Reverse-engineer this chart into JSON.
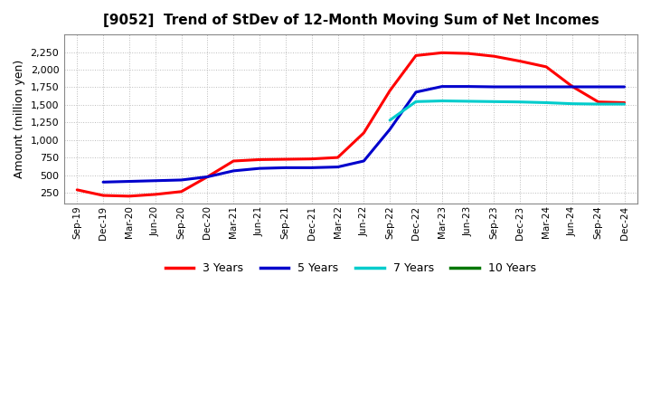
{
  "title": "[9052]  Trend of StDev of 12-Month Moving Sum of Net Incomes",
  "ylabel": "Amount (million yen)",
  "background_color": "#ffffff",
  "plot_bg_color": "#ffffff",
  "grid_color": "#bbbbbb",
  "x_labels": [
    "Sep-19",
    "Dec-19",
    "Mar-20",
    "Jun-20",
    "Sep-20",
    "Dec-20",
    "Mar-21",
    "Jun-21",
    "Sep-21",
    "Dec-21",
    "Mar-22",
    "Jun-22",
    "Sep-22",
    "Dec-22",
    "Mar-23",
    "Jun-23",
    "Sep-23",
    "Dec-23",
    "Mar-24",
    "Jun-24",
    "Sep-24",
    "Dec-24"
  ],
  "ylim": [
    100,
    2500
  ],
  "yticks": [
    250,
    500,
    750,
    1000,
    1250,
    1500,
    1750,
    2000,
    2250
  ],
  "series": [
    {
      "label": "3 Years",
      "color": "#ff0000",
      "values": [
        290,
        210,
        200,
        225,
        265,
        475,
        700,
        720,
        725,
        730,
        750,
        1100,
        1700,
        2200,
        2240,
        2230,
        2190,
        2120,
        2040,
        1760,
        1540,
        1530
      ]
    },
    {
      "label": "5 Years",
      "color": "#0000cc",
      "values": [
        null,
        400,
        410,
        420,
        430,
        475,
        560,
        595,
        605,
        605,
        615,
        700,
        1150,
        1680,
        1760,
        1760,
        1755,
        1755,
        1755,
        1755,
        1755,
        1755
      ]
    },
    {
      "label": "7 Years",
      "color": "#00cccc",
      "values": [
        null,
        null,
        null,
        null,
        null,
        null,
        null,
        null,
        null,
        null,
        null,
        null,
        1280,
        1545,
        1555,
        1550,
        1545,
        1540,
        1530,
        1515,
        1510,
        1510
      ]
    },
    {
      "label": "10 Years",
      "color": "#007700",
      "values": [
        null,
        null,
        null,
        null,
        null,
        null,
        null,
        null,
        null,
        null,
        null,
        null,
        null,
        null,
        null,
        null,
        null,
        null,
        null,
        null,
        null,
        null
      ]
    }
  ],
  "legend_labels": [
    "3 Years",
    "5 Years",
    "7 Years",
    "10 Years"
  ],
  "legend_colors": [
    "#ff0000",
    "#0000cc",
    "#00cccc",
    "#007700"
  ]
}
